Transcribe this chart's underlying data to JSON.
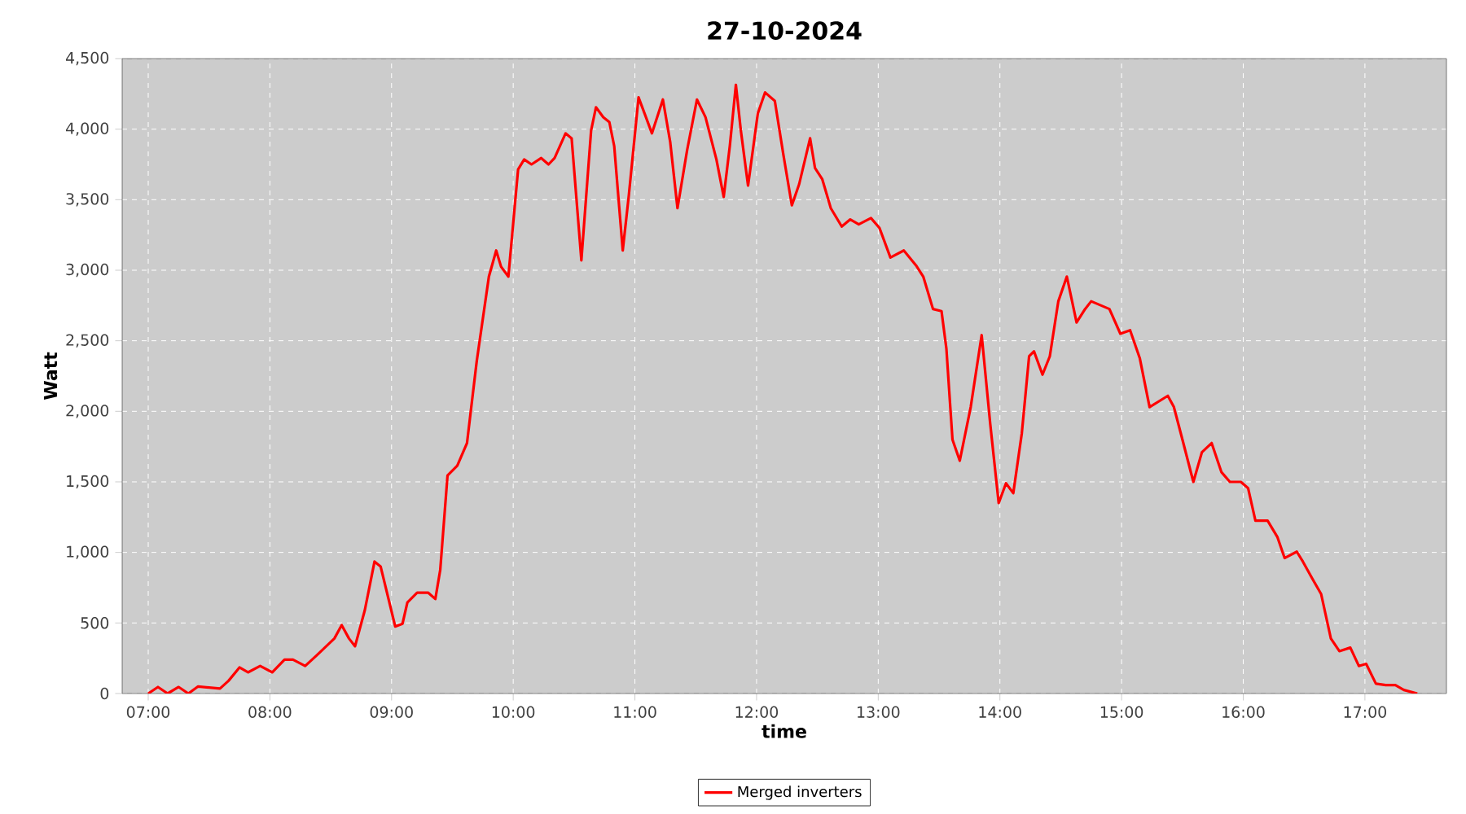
{
  "chart_data": {
    "type": "line",
    "title": "27-10-2024",
    "xlabel": "time",
    "ylabel": "Watt",
    "xlim": [
      6.786,
      17.67
    ],
    "ylim": [
      0,
      4500
    ],
    "xticks": [
      {
        "value": 7,
        "label": "07:00"
      },
      {
        "value": 8,
        "label": "08:00"
      },
      {
        "value": 9,
        "label": "09:00"
      },
      {
        "value": 10,
        "label": "10:00"
      },
      {
        "value": 11,
        "label": "11:00"
      },
      {
        "value": 12,
        "label": "12:00"
      },
      {
        "value": 13,
        "label": "13:00"
      },
      {
        "value": 14,
        "label": "14:00"
      },
      {
        "value": 15,
        "label": "15:00"
      },
      {
        "value": 16,
        "label": "16:00"
      },
      {
        "value": 17,
        "label": "17:00"
      }
    ],
    "yticks": [
      0,
      500,
      {
        "value": 1000,
        "label": "1,000"
      },
      {
        "value": 1500,
        "label": "1,500"
      },
      {
        "value": 2000,
        "label": "2,000"
      },
      {
        "value": 2500,
        "label": "2,500"
      },
      {
        "value": 3000,
        "label": "3,000"
      },
      {
        "value": 3500,
        "label": "3,500"
      },
      {
        "value": 4000,
        "label": "4,000"
      },
      {
        "value": 4500,
        "label": "4,500"
      }
    ],
    "grid": true,
    "legend": "bottom",
    "marker": "none",
    "line_style": "solid",
    "series": [
      {
        "name": "Merged inverters",
        "color": "#ff0000",
        "x": [
          7.0,
          7.08,
          7.16,
          7.25,
          7.33,
          7.41,
          7.59,
          7.66,
          7.75,
          7.82,
          7.92,
          8.02,
          8.12,
          8.19,
          8.29,
          8.39,
          8.53,
          8.59,
          8.65,
          8.7,
          8.78,
          8.86,
          8.91,
          9.03,
          9.09,
          9.13,
          9.21,
          9.3,
          9.36,
          9.4,
          9.46,
          9.54,
          9.62,
          9.7,
          9.8,
          9.86,
          9.9,
          9.96,
          10.04,
          10.09,
          10.15,
          10.23,
          10.29,
          10.34,
          10.43,
          10.48,
          10.56,
          10.64,
          10.68,
          10.74,
          10.79,
          10.83,
          10.9,
          10.95,
          11.03,
          11.08,
          11.14,
          11.23,
          11.29,
          11.35,
          11.43,
          11.51,
          11.58,
          11.67,
          11.73,
          11.78,
          11.83,
          11.87,
          11.93,
          12.01,
          12.07,
          12.15,
          12.22,
          12.29,
          12.35,
          12.44,
          12.48,
          12.54,
          12.61,
          12.7,
          12.77,
          12.84,
          12.94,
          13.01,
          13.1,
          13.21,
          13.31,
          13.37,
          13.45,
          13.52,
          13.56,
          13.61,
          13.67,
          13.76,
          13.85,
          13.92,
          13.99,
          14.05,
          14.11,
          14.18,
          14.24,
          14.28,
          14.35,
          14.41,
          14.48,
          14.55,
          14.63,
          14.7,
          14.75,
          14.9,
          14.99,
          15.07,
          15.15,
          15.23,
          15.38,
          15.43,
          15.5,
          15.59,
          15.66,
          15.74,
          15.82,
          15.89,
          15.98,
          16.04,
          16.1,
          16.2,
          16.28,
          16.34,
          16.44,
          16.49,
          16.57,
          16.64,
          16.72,
          16.79,
          16.88,
          16.95,
          17.01,
          17.09,
          17.17,
          17.25,
          17.32,
          17.43
        ],
        "values": [
          0,
          46,
          0,
          46,
          0,
          50,
          35,
          90,
          185,
          150,
          195,
          150,
          240,
          240,
          195,
          275,
          390,
          485,
          390,
          335,
          590,
          935,
          900,
          475,
          495,
          645,
          715,
          715,
          670,
          875,
          1545,
          1615,
          1775,
          2355,
          2955,
          3140,
          3025,
          2955,
          3715,
          3785,
          3750,
          3795,
          3750,
          3795,
          3970,
          3935,
          3070,
          3990,
          4155,
          4085,
          4050,
          3880,
          3140,
          3530,
          4225,
          4110,
          3970,
          4210,
          3910,
          3440,
          3855,
          4210,
          4085,
          3785,
          3520,
          3880,
          4315,
          3995,
          3600,
          4110,
          4260,
          4200,
          3820,
          3460,
          3610,
          3935,
          3725,
          3645,
          3440,
          3310,
          3360,
          3325,
          3370,
          3300,
          3090,
          3140,
          3035,
          2955,
          2725,
          2710,
          2445,
          1800,
          1650,
          2030,
          2540,
          1915,
          1350,
          1490,
          1420,
          1845,
          2390,
          2425,
          2260,
          2390,
          2780,
          2955,
          2630,
          2725,
          2780,
          2725,
          2550,
          2575,
          2375,
          2030,
          2110,
          2030,
          1800,
          1500,
          1710,
          1775,
          1570,
          1500,
          1500,
          1455,
          1225,
          1225,
          1110,
          960,
          1005,
          935,
          810,
          705,
          390,
          300,
          325,
          195,
          210,
          70,
          60,
          60,
          25,
          0
        ]
      }
    ]
  }
}
